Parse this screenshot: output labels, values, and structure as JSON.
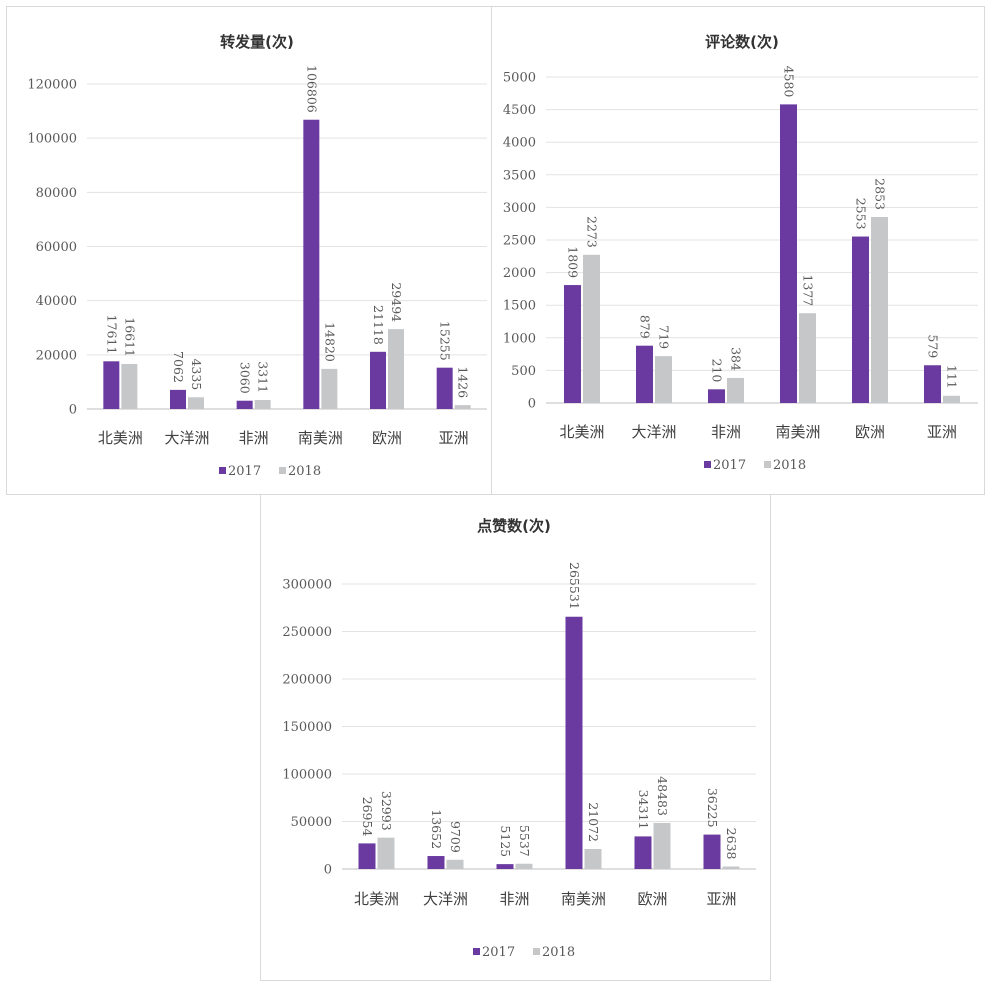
{
  "colors": {
    "y2017": "#6a3aa0",
    "y2018": "#c6c7c9"
  },
  "chart_data": [
    {
      "type": "bar",
      "title": "转发量(次)",
      "categories": [
        "北美洲",
        "大洋洲",
        "非洲",
        "南美洲",
        "欧洲",
        "亚洲"
      ],
      "series": [
        {
          "name": "2017",
          "values": [
            17611,
            7062,
            3060,
            106806,
            21118,
            15255
          ]
        },
        {
          "name": "2018",
          "values": [
            16611,
            4335,
            3311,
            14820,
            29494,
            1426
          ]
        }
      ],
      "ylim": [
        0,
        120000
      ],
      "yticks": [
        "0",
        "20000",
        "40000",
        "60000",
        "80000",
        "100000",
        "120000"
      ],
      "grid": true,
      "legend": "bottom"
    },
    {
      "type": "bar",
      "title": "评论数(次)",
      "categories": [
        "北美洲",
        "大洋洲",
        "非洲",
        "南美洲",
        "欧洲",
        "亚洲"
      ],
      "series": [
        {
          "name": "2017",
          "values": [
            1809,
            879,
            210,
            4580,
            2553,
            579
          ]
        },
        {
          "name": "2018",
          "values": [
            2273,
            719,
            384,
            1377,
            2853,
            111
          ]
        }
      ],
      "ylim": [
        0,
        5000
      ],
      "yticks": [
        "0",
        "500",
        "1000",
        "1500",
        "2000",
        "2500",
        "3000",
        "3500",
        "4000",
        "4500",
        "5000"
      ],
      "grid": true,
      "legend": "bottom"
    },
    {
      "type": "bar",
      "title": "点赞数(次)",
      "categories": [
        "北美洲",
        "大洋洲",
        "非洲",
        "南美洲",
        "欧洲",
        "亚洲"
      ],
      "series": [
        {
          "name": "2017",
          "values": [
            26954,
            13652,
            5125,
            265531,
            34311,
            36225
          ]
        },
        {
          "name": "2018",
          "values": [
            32993,
            9709,
            5537,
            21072,
            48483,
            2638
          ]
        }
      ],
      "ylim": [
        0,
        300000
      ],
      "yticks": [
        "0",
        "50000",
        "100000",
        "150000",
        "200000",
        "250000",
        "300000"
      ],
      "grid": true,
      "legend": "bottom"
    }
  ]
}
